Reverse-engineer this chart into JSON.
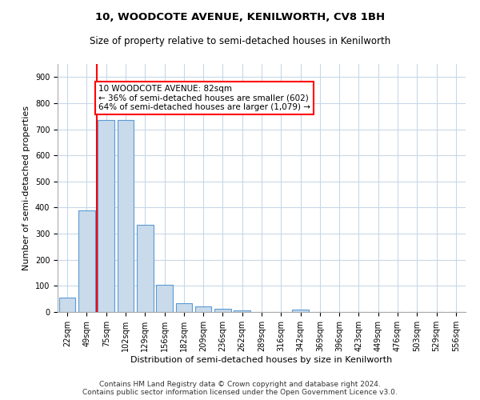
{
  "title1": "10, WOODCOTE AVENUE, KENILWORTH, CV8 1BH",
  "title2": "Size of property relative to semi-detached houses in Kenilworth",
  "xlabel": "Distribution of semi-detached houses by size in Kenilworth",
  "ylabel": "Number of semi-detached properties",
  "categories": [
    "22sqm",
    "49sqm",
    "75sqm",
    "102sqm",
    "129sqm",
    "156sqm",
    "182sqm",
    "209sqm",
    "236sqm",
    "262sqm",
    "289sqm",
    "316sqm",
    "342sqm",
    "369sqm",
    "396sqm",
    "423sqm",
    "449sqm",
    "476sqm",
    "503sqm",
    "529sqm",
    "556sqm"
  ],
  "values": [
    55,
    390,
    735,
    735,
    335,
    105,
    35,
    20,
    12,
    5,
    0,
    0,
    10,
    0,
    0,
    0,
    0,
    0,
    0,
    0,
    0
  ],
  "bar_color": "#c9daea",
  "bar_edge_color": "#5b9bd5",
  "red_line_index": 2,
  "annotation_text_line1": "10 WOODCOTE AVENUE: 82sqm",
  "annotation_text_line2": "← 36% of semi-detached houses are smaller (602)",
  "annotation_text_line3": "64% of semi-detached houses are larger (1,079) →",
  "ylim": [
    0,
    950
  ],
  "yticks": [
    0,
    100,
    200,
    300,
    400,
    500,
    600,
    700,
    800,
    900
  ],
  "footer1": "Contains HM Land Registry data © Crown copyright and database right 2024.",
  "footer2": "Contains public sector information licensed under the Open Government Licence v3.0.",
  "bg_color": "#ffffff",
  "grid_color": "#c8d8e8",
  "title1_fontsize": 9.5,
  "title2_fontsize": 8.5,
  "axis_label_fontsize": 8,
  "tick_fontsize": 7,
  "footer_fontsize": 6.5,
  "annotation_fontsize": 7.5
}
